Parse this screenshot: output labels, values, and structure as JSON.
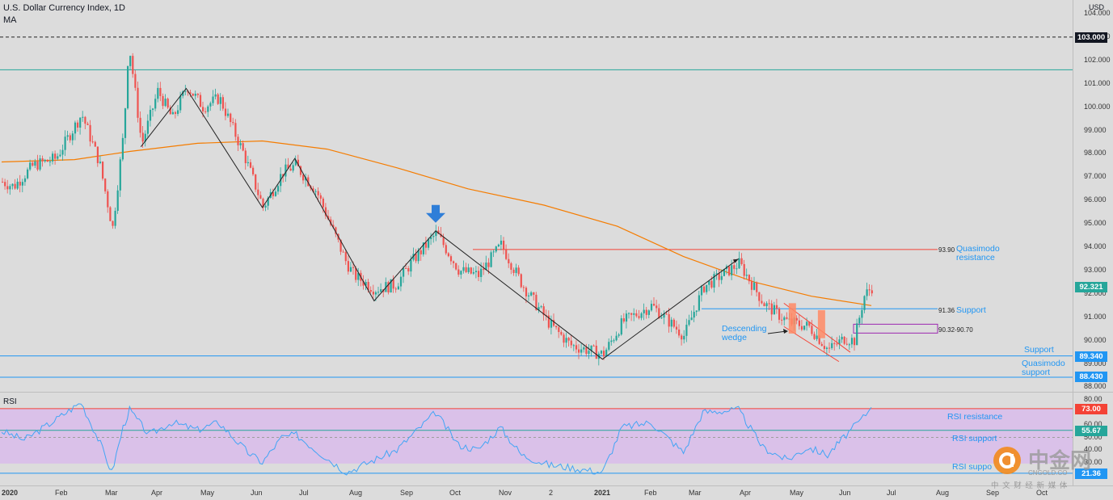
{
  "header": {
    "title": "U.S. Dollar Currency Index, 1D",
    "indicator": "MA",
    "currency": "USD",
    "rsi_label": "RSI"
  },
  "price_axis": {
    "ticks": [
      "104.000",
      "103.000",
      "102.000",
      "101.000",
      "100.000",
      "99.000",
      "98.000",
      "97.000",
      "96.000",
      "95.000",
      "94.000",
      "93.000",
      "92.000",
      "91.000",
      "90.000",
      "89.000",
      "88.000"
    ]
  },
  "rsi_axis": {
    "ticks": [
      "80.00",
      "70.00",
      "60.00",
      "50.00",
      "40.00",
      "30.00",
      "20.00"
    ]
  },
  "x_axis": {
    "labels": [
      "2020",
      "Feb",
      "Mar",
      "Apr",
      "May",
      "Jun",
      "Jul",
      "Aug",
      "Sep",
      "Oct",
      "Nov",
      "2",
      "2021",
      "Feb",
      "Mar",
      "Apr",
      "May",
      "Jun",
      "Jul",
      "Aug",
      "Sep",
      "Oct"
    ]
  },
  "price_tags": {
    "top_level": "103.000",
    "last_price": "92.321",
    "support": "89.340",
    "qm_support": "88.430"
  },
  "rsi_tags": {
    "resistance": "73.00",
    "support1": "55.67",
    "support2": "21.36"
  },
  "annotations": {
    "qm_resistance_value": "93.90",
    "qm_resistance_text": "Quasimodo resistance",
    "support_value": "91.36",
    "support_text": "Support",
    "zone_value": "90.32-90.70",
    "wedge_text": "Descending wedge",
    "support_bottom_text": "Support",
    "qm_support_text": "Quasimodo support",
    "rsi_resistance_text": "RSI resistance",
    "rsi_support_text": "RSI support",
    "rsi_support2_text": "RSI suppo"
  },
  "watermark": {
    "brand": "中金网",
    "site": "CNGOLD.CO",
    "tagline": "中 文 财 经 新 媒 体"
  },
  "colors": {
    "bull": "#26a69a",
    "bear": "#ef5350",
    "ma": "#f57c00",
    "support": "#2196f3",
    "resistance": "#f44336",
    "rsi_line": "#42a5f5",
    "rsi_band": "#d9b8ee"
  },
  "chart_data": {
    "type": "line",
    "title": "U.S. Dollar Currency Index, 1D",
    "ylim": [
      88,
      104
    ],
    "close_path": [
      [
        "2020-01-01",
        96.8
      ],
      [
        "2020-01-08",
        96.6
      ],
      [
        "2020-01-20",
        97.5
      ],
      [
        "2020-02-03",
        97.8
      ],
      [
        "2020-02-19",
        99.7
      ],
      [
        "2020-03-01",
        97.6
      ],
      [
        "2020-03-09",
        94.8
      ],
      [
        "2020-03-16",
        99.0
      ],
      [
        "2020-03-19",
        102.8
      ],
      [
        "2020-03-27",
        98.4
      ],
      [
        "2020-04-06",
        100.7
      ],
      [
        "2020-04-15",
        99.5
      ],
      [
        "2020-04-24",
        100.9
      ],
      [
        "2020-05-04",
        100.0
      ],
      [
        "2020-05-14",
        100.4
      ],
      [
        "2020-05-29",
        98.0
      ],
      [
        "2020-06-10",
        95.7
      ],
      [
        "2020-06-22",
        97.2
      ],
      [
        "2020-06-30",
        97.5
      ],
      [
        "2020-07-13",
        96.4
      ],
      [
        "2020-07-31",
        93.4
      ],
      [
        "2020-08-05",
        92.8
      ],
      [
        "2020-08-18",
        92.2
      ],
      [
        "2020-08-31",
        92.4
      ],
      [
        "2020-09-10",
        93.4
      ],
      [
        "2020-09-25",
        94.6
      ],
      [
        "2020-10-09",
        93.0
      ],
      [
        "2020-10-21",
        92.8
      ],
      [
        "2020-11-04",
        94.1
      ],
      [
        "2020-11-17",
        92.4
      ],
      [
        "2020-12-04",
        90.7
      ],
      [
        "2020-12-17",
        89.8
      ],
      [
        "2021-01-06",
        89.4
      ],
      [
        "2021-01-18",
        90.8
      ],
      [
        "2021-02-05",
        91.5
      ],
      [
        "2021-02-25",
        90.2
      ],
      [
        "2021-03-09",
        92.3
      ],
      [
        "2021-03-31",
        93.3
      ],
      [
        "2021-04-15",
        91.6
      ],
      [
        "2021-04-30",
        90.8
      ],
      [
        "2021-05-13",
        90.6
      ],
      [
        "2021-05-25",
        89.6
      ],
      [
        "2021-06-04",
        90.1
      ],
      [
        "2021-06-10",
        90.0
      ],
      [
        "2021-06-16",
        91.9
      ],
      [
        "2021-06-21",
        92.3
      ]
    ],
    "ma_path": [
      [
        "2020-01-01",
        97.65
      ],
      [
        "2020-02-15",
        97.75
      ],
      [
        "2020-03-20",
        98.1
      ],
      [
        "2020-05-01",
        98.45
      ],
      [
        "2020-06-10",
        98.55
      ],
      [
        "2020-07-20",
        98.2
      ],
      [
        "2020-09-01",
        97.4
      ],
      [
        "2020-10-15",
        96.5
      ],
      [
        "2020-12-01",
        95.8
      ],
      [
        "2021-01-15",
        94.9
      ],
      [
        "2021-02-25",
        93.6
      ],
      [
        "2021-04-10",
        92.5
      ],
      [
        "2021-05-15",
        91.9
      ],
      [
        "2021-06-21",
        91.5
      ]
    ],
    "zigzag": [
      [
        "2020-03-27",
        98.3
      ],
      [
        "2020-04-24",
        100.8
      ],
      [
        "2020-06-10",
        95.7
      ],
      [
        "2020-06-30",
        97.8
      ],
      [
        "2020-08-18",
        91.7
      ],
      [
        "2020-09-25",
        94.7
      ],
      [
        "2021-01-06",
        89.2
      ],
      [
        "2021-03-31",
        93.5
      ]
    ],
    "levels": {
      "high": 103.0,
      "upper_green": 101.6,
      "qm_resistance": 93.9,
      "support": 91.36,
      "support2": 89.34,
      "qm_support": 88.43,
      "zone": [
        90.32,
        90.7
      ]
    },
    "rsi": {
      "ylim": [
        20,
        80
      ],
      "resistance": 73.0,
      "support1": 55.67,
      "support2": 21.36
    },
    "rsi_path": [
      [
        "2020-01-01",
        55
      ],
      [
        "2020-01-15",
        48
      ],
      [
        "2020-02-01",
        62
      ],
      [
        "2020-02-19",
        78
      ],
      [
        "2020-03-02",
        45
      ],
      [
        "2020-03-09",
        22
      ],
      [
        "2020-03-16",
        58
      ],
      [
        "2020-03-20",
        72
      ],
      [
        "2020-04-01",
        52
      ],
      [
        "2020-04-15",
        62
      ],
      [
        "2020-05-01",
        56
      ],
      [
        "2020-05-14",
        62
      ],
      [
        "2020-06-01",
        38
      ],
      [
        "2020-06-10",
        30
      ],
      [
        "2020-06-22",
        50
      ],
      [
        "2020-07-01",
        52
      ],
      [
        "2020-07-15",
        38
      ],
      [
        "2020-08-01",
        22
      ],
      [
        "2020-08-18",
        32
      ],
      [
        "2020-09-01",
        40
      ],
      [
        "2020-09-25",
        70
      ],
      [
        "2020-10-09",
        44
      ],
      [
        "2020-10-21",
        40
      ],
      [
        "2020-11-04",
        58
      ],
      [
        "2020-11-17",
        36
      ],
      [
        "2020-12-04",
        28
      ],
      [
        "2020-12-17",
        26
      ],
      [
        "2021-01-06",
        22
      ],
      [
        "2021-01-18",
        58
      ],
      [
        "2021-02-05",
        62
      ],
      [
        "2021-02-25",
        38
      ],
      [
        "2021-03-09",
        70
      ],
      [
        "2021-03-31",
        72
      ],
      [
        "2021-04-15",
        42
      ],
      [
        "2021-04-30",
        32
      ],
      [
        "2021-05-13",
        42
      ],
      [
        "2021-05-25",
        36
      ],
      [
        "2021-06-04",
        50
      ],
      [
        "2021-06-16",
        66
      ],
      [
        "2021-06-21",
        74
      ]
    ]
  }
}
